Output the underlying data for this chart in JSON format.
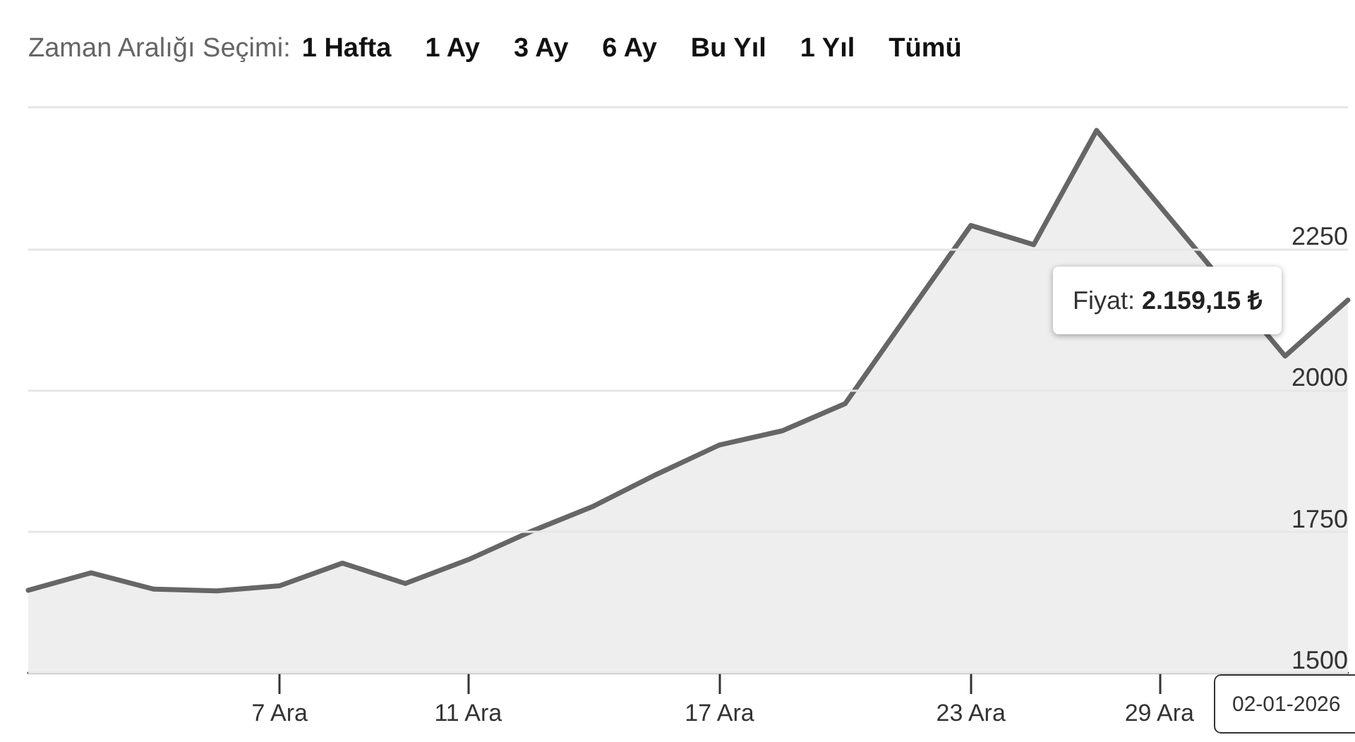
{
  "chart_data": {
    "type": "area",
    "categories": [
      null,
      null,
      null,
      null,
      "7 Ara",
      null,
      null,
      "11 Ara",
      null,
      null,
      null,
      "17 Ara",
      null,
      null,
      null,
      "23 Ara",
      null,
      null,
      "29 Ara",
      null,
      null,
      null
    ],
    "series": [
      {
        "color": "#666666",
        "values": [
          1646,
          1677,
          1648,
          1645,
          1654,
          1694,
          1658,
          1700,
          1750,
          1795,
          1851,
          1903,
          1928,
          1976,
          2134,
          2291,
          2257,
          2459,
          null,
          null,
          2060,
          2159.15
        ]
      }
    ],
    "ylim": [
      1500,
      2500
    ],
    "yticks": [
      1500,
      1750,
      2000,
      2250,
      {
        "value": 2500,
        "label": null
      }
    ],
    "grid": "y",
    "marker": "none",
    "line_style": "solid",
    "annotations": [
      "Zaman Aralığı Seçimi:",
      "1 Hafta",
      "1 Ay",
      "3 Ay",
      "6 Ay",
      "Bu Yıl",
      "1 Yıl",
      "Tümü",
      "Fiyat: 2.159,15 ₺",
      "02-01-2026"
    ]
  }
}
